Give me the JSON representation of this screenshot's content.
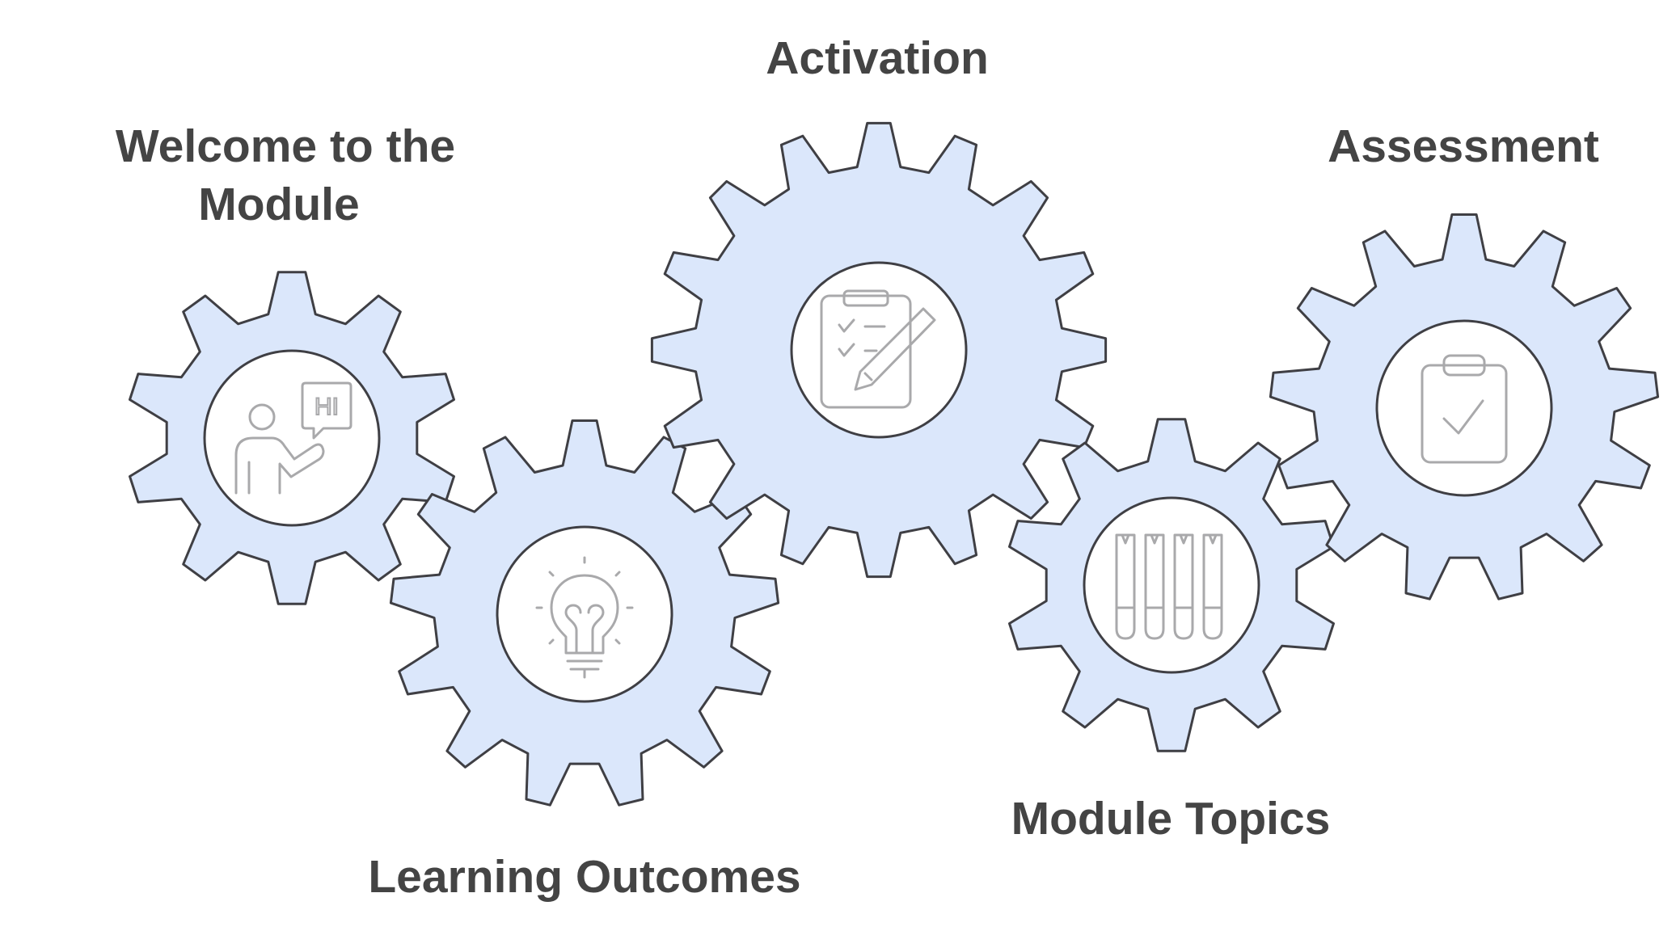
{
  "steps": {
    "welcome": {
      "line1": "Welcome to the",
      "line2": "Module",
      "icon": "presenter-icon",
      "icon_text": "HI"
    },
    "outcomes": {
      "label": "Learning Outcomes",
      "icon": "lightbulb-icon"
    },
    "activation": {
      "label": "Activation",
      "icon": "clipboard-pencil-icon"
    },
    "topics": {
      "label": "Module Topics",
      "icon": "test-tubes-icon"
    },
    "assessment": {
      "label": "Assessment",
      "icon": "clipboard-check-icon"
    }
  },
  "colors": {
    "gear_fill": "#dbe7fb",
    "gear_stroke": "#3f3f44",
    "icon_stroke": "#a9a9ab",
    "label_text": "#444444"
  }
}
